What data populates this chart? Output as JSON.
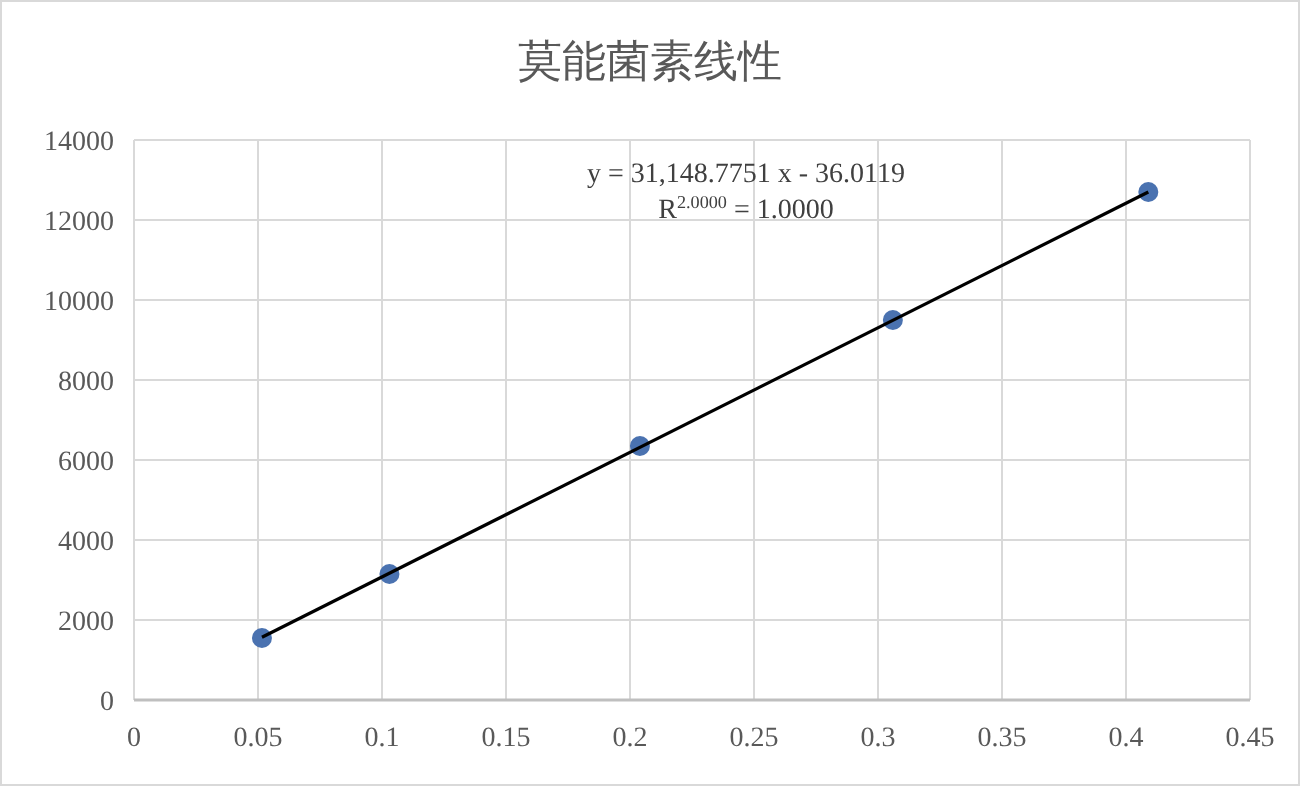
{
  "chart_data": {
    "type": "scatter",
    "title": "莫能菌素线性",
    "xlim": [
      0,
      0.45
    ],
    "xticks": [
      0,
      0.05,
      0.1,
      0.15,
      0.2,
      0.25,
      0.3,
      0.35,
      0.4,
      0.45
    ],
    "ylim": [
      0,
      14000
    ],
    "yticks": [
      0,
      2000,
      4000,
      6000,
      8000,
      10000,
      12000,
      14000
    ],
    "grid": true,
    "marker": "circle",
    "series": [
      {
        "color": "#4a72b0",
        "x": [
          0.0516,
          0.103,
          0.204,
          0.306,
          0.409
        ],
        "values": [
          1550,
          3150,
          6350,
          9500,
          12700
        ]
      },
      {
        "type": "line",
        "color": "#000000",
        "marker": "none",
        "line_style": "solid",
        "x": [
          0.0516,
          0.409
        ],
        "values": [
          1570,
          12700
        ]
      }
    ],
    "annotations": [
      "y = 31,148.7751 x - 36.0119",
      "R$^{2.0000}$ = 1.0000"
    ]
  }
}
